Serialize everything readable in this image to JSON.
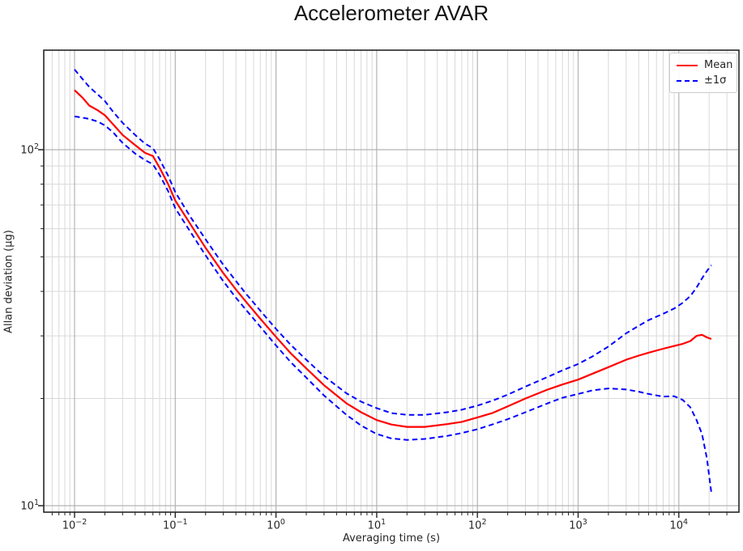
{
  "chart_data": {
    "type": "line",
    "title": "Accelerometer AVAR",
    "xlabel": "Averaging time (s)",
    "ylabel": "Allan deviation (μg)",
    "x_scale": "log",
    "y_scale": "log",
    "xlim": [
      0.005,
      40000
    ],
    "ylim": [
      9.6,
      190
    ],
    "x_tick_exponents": [
      -2,
      -1,
      0,
      1,
      2,
      3,
      4
    ],
    "y_tick_exponents": [
      1,
      2
    ],
    "grid": "major+minor",
    "legend": {
      "position": "upper right",
      "items": [
        {
          "label": "Mean",
          "color": "#ff0000",
          "dash": "solid"
        },
        {
          "label": "±1σ",
          "color": "#0000ff",
          "dash": "dashed"
        }
      ]
    },
    "x": [
      0.01,
      0.012,
      0.014,
      0.017,
      0.02,
      0.024,
      0.03,
      0.04,
      0.05,
      0.06,
      0.07,
      0.085,
      0.1,
      0.14,
      0.2,
      0.3,
      0.4,
      0.5,
      0.7,
      1,
      1.4,
      2,
      3,
      5,
      7,
      10,
      14,
      20,
      30,
      50,
      70,
      100,
      140,
      200,
      300,
      500,
      700,
      1000,
      1400,
      2000,
      3000,
      4000,
      5000,
      7000,
      9000,
      11000,
      13000,
      15000,
      17000,
      19000,
      21000
    ],
    "series": [
      {
        "name": "Mean",
        "color": "#ff0000",
        "style": "solid",
        "values": [
          147,
          140,
          133,
          129,
          125,
          118,
          110,
          103,
          98,
          96,
          89,
          80,
          72,
          62,
          53,
          45,
          40.5,
          37.5,
          33.5,
          29.8,
          26.8,
          24.3,
          21.8,
          19.4,
          18.3,
          17.4,
          16.9,
          16.65,
          16.65,
          16.95,
          17.2,
          17.7,
          18.2,
          19.0,
          20.0,
          21.2,
          21.9,
          22.6,
          23.5,
          24.5,
          25.7,
          26.4,
          26.9,
          27.6,
          28.1,
          28.5,
          29.0,
          30.0,
          30.2,
          29.7,
          29.4
        ]
      },
      {
        "name": "+1σ",
        "color": "#0000ff",
        "style": "dashed",
        "values": [
          168,
          158,
          150,
          143,
          137,
          128,
          119,
          110,
          104,
          101,
          94,
          84.5,
          76,
          65,
          56,
          47.5,
          42.8,
          39.5,
          35.3,
          31.4,
          28.3,
          25.7,
          23.1,
          20.7,
          19.6,
          18.8,
          18.2,
          18.0,
          18.0,
          18.3,
          18.6,
          19.1,
          19.7,
          20.5,
          21.6,
          23.0,
          24.0,
          25.0,
          26.3,
          28.0,
          30.5,
          32.0,
          33.2,
          34.6,
          35.8,
          37.2,
          38.8,
          41.0,
          43.5,
          45.6,
          47.4
        ]
      },
      {
        "name": "−1σ",
        "color": "#0000ff",
        "style": "dashed",
        "values": [
          124,
          123,
          122,
          120,
          117,
          112,
          104.5,
          97.5,
          93.5,
          91,
          85,
          76.5,
          68.5,
          59,
          50.5,
          42.7,
          38.4,
          35.6,
          31.8,
          28.2,
          25.3,
          22.9,
          20.4,
          18.0,
          16.8,
          15.9,
          15.45,
          15.3,
          15.4,
          15.7,
          16.0,
          16.4,
          16.9,
          17.5,
          18.3,
          19.4,
          20.1,
          20.6,
          21.1,
          21.35,
          21.2,
          20.9,
          20.6,
          20.25,
          20.3,
          19.8,
          18.9,
          17.4,
          15.9,
          13.6,
          10.9
        ]
      }
    ]
  },
  "colors": {
    "mean": "#ff0000",
    "sigma": "#0000ff",
    "grid_major": "#b3b3b3",
    "grid_minor": "#d9d9d9",
    "spine": "#262626",
    "text": "#262626"
  }
}
